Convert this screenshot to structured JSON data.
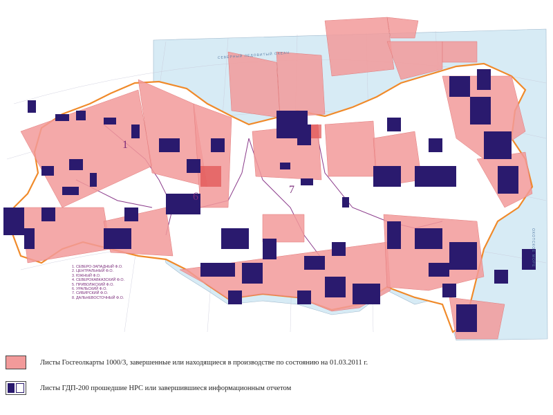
{
  "map": {
    "district_numbers": [
      "1",
      "6",
      "7"
    ],
    "sea_labels": [
      "СЕВЕРНЫЙ ЛЕДОВИТЫЙ ОКЕАН",
      "ОХОТСКОЕ МОРЕ"
    ],
    "colors": {
      "land": "#ffffff",
      "sea": "#d7ebf5",
      "sheet_fill": "#f29a9a",
      "gdp_fill": "#2a1a6e",
      "border": "#f08a2a",
      "district_border": "#8a3a8a"
    }
  },
  "districts_legend": [
    "1. СЕВЕРО-ЗАПАДНЫЙ  Ф.О.",
    "2. ЦЕНТРАЛЬНЫЙ  Ф.О.",
    "3. ЮЖНЫЙ  Ф.О.",
    "4. СЕВЕРОКАВКАЗСКИЙ  Ф.О.",
    "5. ПРИВОЛЖСКИЙ  Ф.О.",
    "6. УРАЛЬСКИЙ  Ф.О.",
    "7. СИБИРСКИЙ  Ф.О.",
    "8. ДАЛЬНЕВОСТОЧНЫЙ  Ф.О."
  ],
  "legend": [
    {
      "label": "Листы Госгеолкарты 1000/3, завершенные или находящиеся в производстве по состоянию на 01.03.2011 г."
    },
    {
      "label": "Листы ГДП-200 прошедшие НРС или завершившиеся информационным отчетом"
    }
  ]
}
